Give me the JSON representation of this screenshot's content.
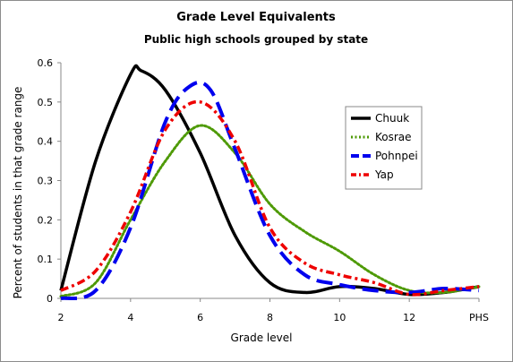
{
  "chart_data": {
    "type": "line",
    "title": "Grade Level Equivalents",
    "subtitle": "Public high schools grouped by state",
    "xlabel": "Grade level",
    "ylabel": "Percent of students in that grade range",
    "xlim": [
      2,
      14
    ],
    "ylim": [
      0,
      0.6
    ],
    "x_ticks": [
      {
        "value": 2,
        "label": "2"
      },
      {
        "value": 4,
        "label": "4"
      },
      {
        "value": 6,
        "label": "6"
      },
      {
        "value": 8,
        "label": "8"
      },
      {
        "value": 10,
        "label": "10"
      },
      {
        "value": 12,
        "label": "12"
      },
      {
        "value": 14,
        "label": "PHS"
      }
    ],
    "y_ticks": [
      {
        "value": 0,
        "label": "0"
      },
      {
        "value": 0.1,
        "label": "0.1"
      },
      {
        "value": 0.2,
        "label": "0.2"
      },
      {
        "value": 0.3,
        "label": "0.3"
      },
      {
        "value": 0.4,
        "label": "0.4"
      },
      {
        "value": 0.5,
        "label": "0.5"
      },
      {
        "value": 0.6,
        "label": "0.6"
      }
    ],
    "grid": false,
    "legend_position": "right",
    "series": [
      {
        "name": "Chuuk",
        "color": "#000000",
        "style": "solid",
        "points": [
          [
            2,
            0.02
          ],
          [
            3,
            0.35
          ],
          [
            4,
            0.57
          ],
          [
            4.3,
            0.58
          ],
          [
            5,
            0.53
          ],
          [
            6,
            0.37
          ],
          [
            7,
            0.16
          ],
          [
            8,
            0.04
          ],
          [
            9,
            0.015
          ],
          [
            10,
            0.03
          ],
          [
            11,
            0.025
          ],
          [
            12,
            0.01
          ],
          [
            13,
            0.015
          ],
          [
            14,
            0.03
          ]
        ]
      },
      {
        "name": "Kosrae",
        "color": "#4e9a06",
        "style": "dotted",
        "points": [
          [
            2,
            0.005
          ],
          [
            3,
            0.04
          ],
          [
            4,
            0.2
          ],
          [
            5,
            0.35
          ],
          [
            6,
            0.44
          ],
          [
            7,
            0.37
          ],
          [
            8,
            0.24
          ],
          [
            9,
            0.17
          ],
          [
            10,
            0.12
          ],
          [
            11,
            0.06
          ],
          [
            12,
            0.02
          ],
          [
            13,
            0.015
          ],
          [
            14,
            0.03
          ]
        ]
      },
      {
        "name": "Pohnpei",
        "color": "#0000ee",
        "style": "dashed",
        "points": [
          [
            2,
            0.0
          ],
          [
            3,
            0.02
          ],
          [
            4,
            0.18
          ],
          [
            5,
            0.45
          ],
          [
            5.7,
            0.54
          ],
          [
            6.3,
            0.53
          ],
          [
            7,
            0.38
          ],
          [
            8,
            0.16
          ],
          [
            9,
            0.06
          ],
          [
            10,
            0.035
          ],
          [
            11,
            0.02
          ],
          [
            12,
            0.015
          ],
          [
            13,
            0.025
          ],
          [
            14,
            0.02
          ]
        ]
      },
      {
        "name": "Yap",
        "color": "#ee0000",
        "style": "dash-dot",
        "points": [
          [
            2,
            0.02
          ],
          [
            3,
            0.07
          ],
          [
            4,
            0.22
          ],
          [
            5,
            0.43
          ],
          [
            6,
            0.5
          ],
          [
            7,
            0.4
          ],
          [
            8,
            0.18
          ],
          [
            9,
            0.09
          ],
          [
            10,
            0.06
          ],
          [
            11,
            0.04
          ],
          [
            12,
            0.01
          ],
          [
            13,
            0.02
          ],
          [
            14,
            0.03
          ]
        ]
      }
    ]
  }
}
